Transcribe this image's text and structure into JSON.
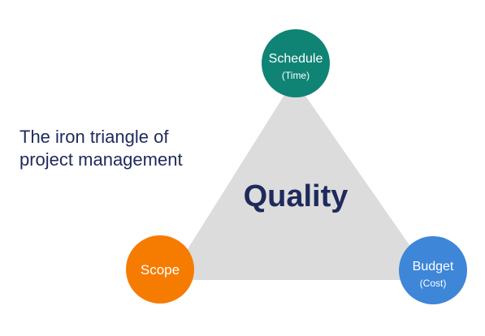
{
  "title": {
    "line1": "The iron triangle of",
    "line2": "project management"
  },
  "center_label": "Quality",
  "nodes": {
    "schedule": {
      "label": "Schedule",
      "sublabel": "(Time)",
      "color": "#0f8475"
    },
    "scope": {
      "label": "Scope",
      "sublabel": "",
      "color": "#f57c00"
    },
    "budget": {
      "label": "Budget",
      "sublabel": "(Cost)",
      "color": "#3d86d8"
    }
  },
  "colors": {
    "triangle_fill": "#dcdcdc",
    "title_text": "#1f2a5c",
    "center_text": "#1f2a5c",
    "node_text": "#ffffff"
  }
}
